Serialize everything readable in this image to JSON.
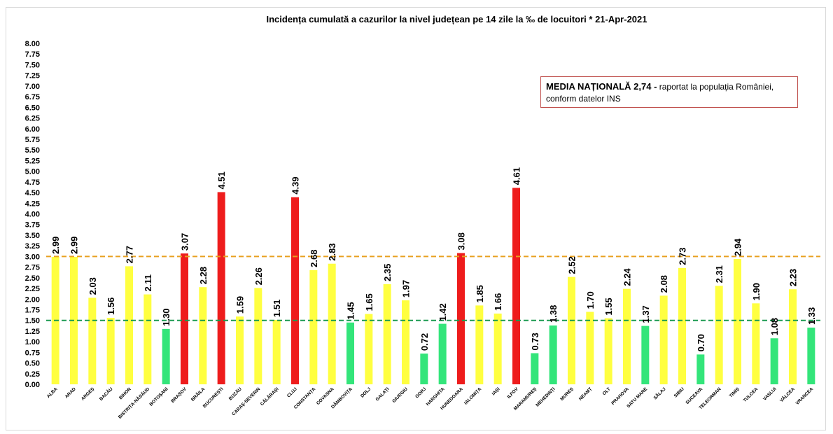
{
  "chart_data": {
    "type": "bar",
    "title": "Incidența cumulată  a cazurilor  la nivel județean pe 14 zile la ‰ de locuitori  *   21-Apr-2021",
    "annotation": {
      "bold": "MEDIA NAȚIONALĂ 2,74 -",
      "line1_rest": " raportat la populația României,",
      "line2": "conform datelor INS"
    },
    "ylim": [
      0,
      8
    ],
    "ytick_step": 0.25,
    "grid": false,
    "reference_lines": [
      {
        "value": 3.0,
        "color": "#e8a020"
      },
      {
        "value": 1.5,
        "color": "#1a9a50"
      }
    ],
    "colors": {
      "green": "#33e57a",
      "yellow": "#ffff40",
      "red": "#ee1c1c"
    },
    "categories": [
      "ALBA",
      "ARAD",
      "ARGEȘ",
      "BACĂU",
      "BIHOR",
      "BISTRIȚA-NĂSĂUD",
      "BOTOȘANI",
      "BRAȘOV",
      "BRĂILA",
      "BUCUREȘTI",
      "BUZĂU",
      "CARAȘ-SEVERIN",
      "CĂLĂRAȘI",
      "CLUJ",
      "CONSTANȚA",
      "COVASNA",
      "DÂMBOVIȚA",
      "DOLJ",
      "GALAȚI",
      "GIURGIU",
      "GORJ",
      "HARGHITA",
      "HUNEDOARA",
      "IALOMIȚA",
      "IAȘI",
      "ILFOV",
      "MARAMUREȘ",
      "MEHEDINȚI",
      "MUREȘ",
      "NEAMȚ",
      "OLT",
      "PRAHOVA",
      "SATU MARE",
      "SĂLAJ",
      "SIBIU",
      "SUCEAVA",
      "TELEORMAN",
      "TIMIȘ",
      "TULCEA",
      "VASLUI",
      "VÂLCEA",
      "VRANCEA"
    ],
    "values": [
      2.99,
      2.99,
      2.03,
      1.56,
      2.77,
      2.11,
      1.3,
      3.07,
      2.28,
      4.51,
      1.59,
      2.26,
      1.51,
      4.39,
      2.68,
      2.83,
      1.45,
      1.65,
      2.35,
      1.97,
      0.72,
      1.42,
      3.08,
      1.85,
      1.66,
      4.61,
      0.73,
      1.38,
      2.52,
      1.7,
      1.55,
      2.24,
      1.37,
      2.08,
      2.73,
      0.7,
      2.31,
      2.94,
      1.9,
      1.08,
      2.23,
      1.33
    ],
    "labels": [
      "2.99",
      "2.99",
      "2.03",
      "1.56",
      "2.77",
      "2.11",
      "1.30",
      "3.07",
      "2.28",
      "4.51",
      "1.59",
      "2.26",
      "1.51",
      "4.39",
      "2.68",
      "2.83",
      "1.45",
      "1.65",
      "2.35",
      "1.97",
      "0.72",
      "1.42",
      "3.08",
      "1.85",
      "1.66",
      "4.61",
      "0.73",
      "1.38",
      "2.52",
      "1.70",
      "1.55",
      "2.24",
      "1.37",
      "2.08",
      "2.73",
      "0.70",
      "2.31",
      "2.94",
      "1.90",
      "1.08",
      "2.23",
      "1.33"
    ],
    "bar_colors": [
      "yellow",
      "yellow",
      "yellow",
      "yellow",
      "yellow",
      "yellow",
      "green",
      "red",
      "yellow",
      "red",
      "yellow",
      "yellow",
      "yellow",
      "red",
      "yellow",
      "yellow",
      "green",
      "yellow",
      "yellow",
      "yellow",
      "green",
      "green",
      "red",
      "yellow",
      "yellow",
      "red",
      "green",
      "green",
      "yellow",
      "yellow",
      "yellow",
      "yellow",
      "green",
      "yellow",
      "yellow",
      "green",
      "yellow",
      "yellow",
      "yellow",
      "green",
      "yellow",
      "green"
    ]
  }
}
